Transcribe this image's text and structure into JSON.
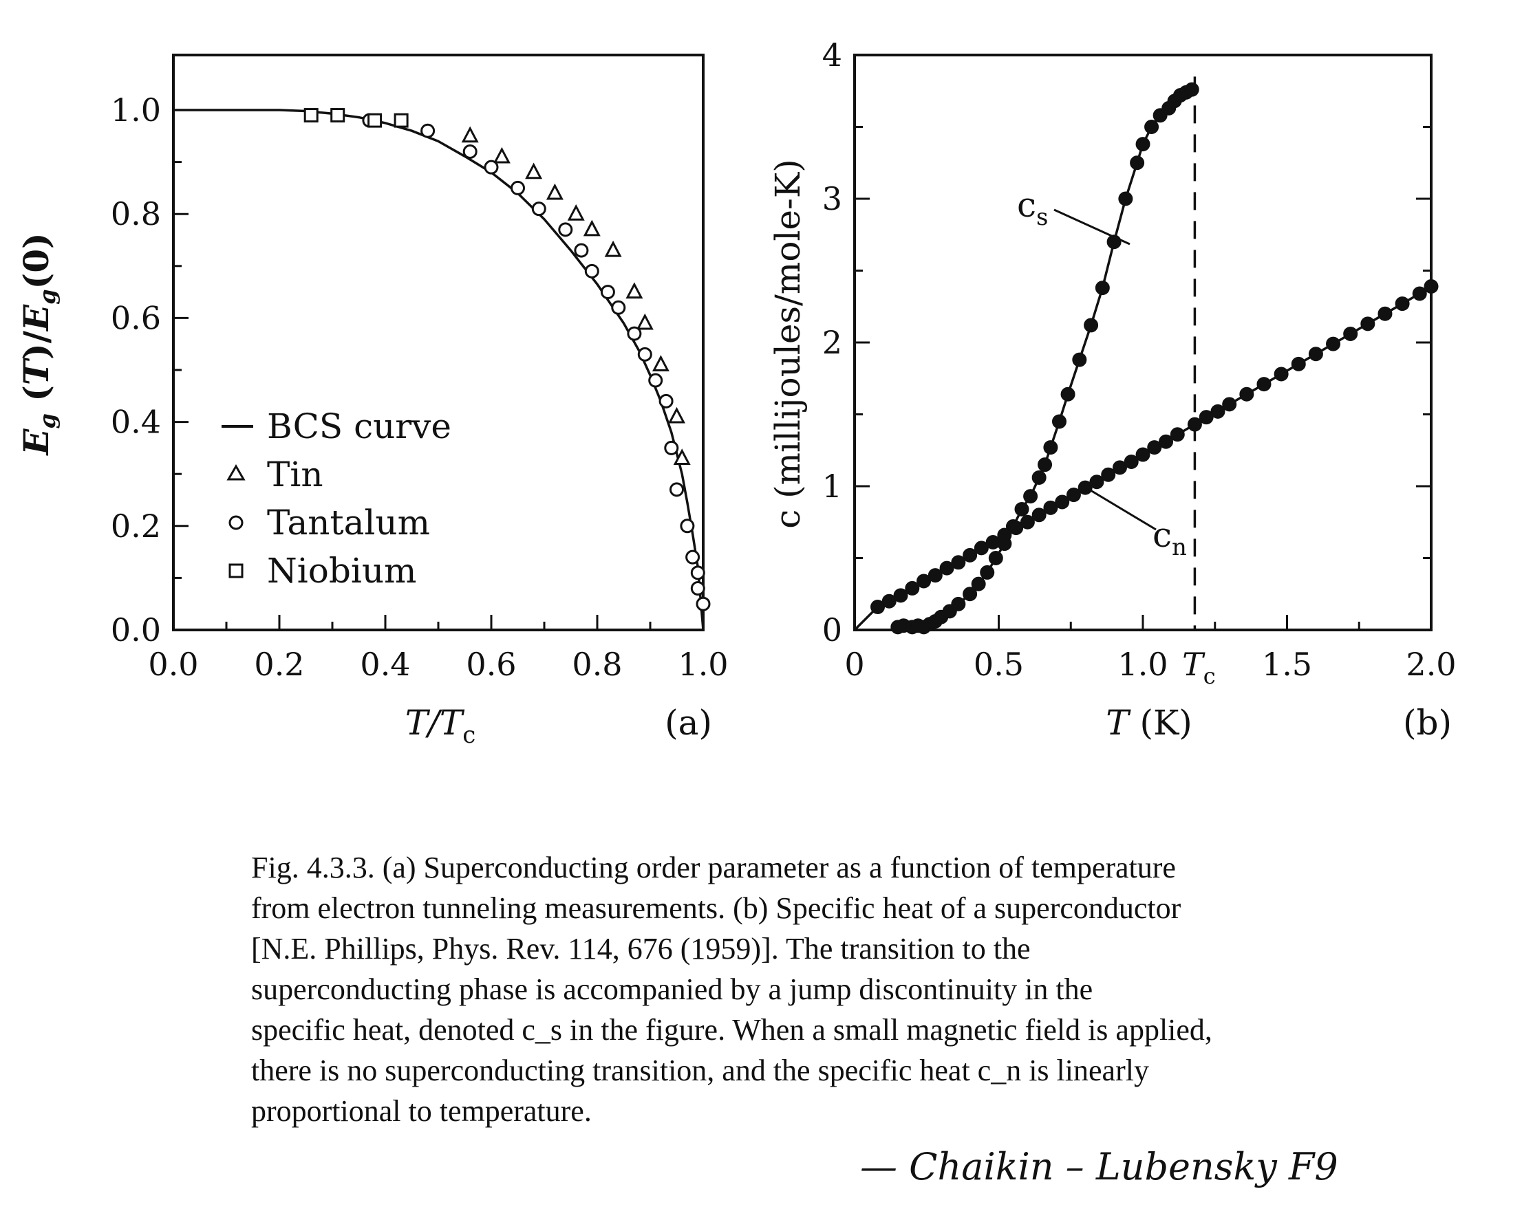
{
  "chart_data": [
    {
      "panel": "(a)",
      "type": "scatter",
      "xlabel": "T/T_c",
      "ylabel": "E_g (T)/E_g(0)",
      "xlim": [
        0.0,
        1.0
      ],
      "ylim": [
        0.0,
        1.1
      ],
      "xticks": [
        "0.0",
        "0.2",
        "0.4",
        "0.6",
        "0.8",
        "1.0"
      ],
      "yticks": [
        "0.0",
        "0.2",
        "0.4",
        "0.6",
        "0.8",
        "1.0"
      ],
      "legend_position": "lower-left",
      "series": [
        {
          "name": "BCS curve",
          "marker": "line",
          "x": [
            0.0,
            0.1,
            0.2,
            0.25,
            0.3,
            0.35,
            0.4,
            0.45,
            0.5,
            0.55,
            0.6,
            0.65,
            0.7,
            0.75,
            0.8,
            0.85,
            0.88,
            0.9,
            0.92,
            0.94,
            0.96,
            0.97,
            0.98,
            0.99,
            1.0
          ],
          "y": [
            1.0,
            1.0,
            1.0,
            0.998,
            0.993,
            0.986,
            0.975,
            0.96,
            0.94,
            0.911,
            0.88,
            0.84,
            0.79,
            0.73,
            0.665,
            0.59,
            0.535,
            0.49,
            0.44,
            0.38,
            0.3,
            0.245,
            0.185,
            0.12,
            0.0
          ]
        },
        {
          "name": "Tin",
          "marker": "triangle",
          "x": [
            0.56,
            0.62,
            0.68,
            0.72,
            0.76,
            0.79,
            0.83,
            0.87,
            0.89,
            0.92,
            0.95,
            0.96
          ],
          "y": [
            0.95,
            0.91,
            0.88,
            0.84,
            0.8,
            0.77,
            0.73,
            0.65,
            0.59,
            0.51,
            0.41,
            0.33
          ]
        },
        {
          "name": "Tantalum",
          "marker": "circle",
          "x": [
            0.37,
            0.48,
            0.56,
            0.6,
            0.65,
            0.69,
            0.74,
            0.77,
            0.79,
            0.82,
            0.84,
            0.87,
            0.89,
            0.91,
            0.93,
            0.94,
            0.95,
            0.97,
            0.98,
            0.99,
            0.99,
            1.0
          ],
          "y": [
            0.98,
            0.96,
            0.92,
            0.89,
            0.85,
            0.81,
            0.77,
            0.73,
            0.69,
            0.65,
            0.62,
            0.57,
            0.53,
            0.48,
            0.44,
            0.35,
            0.27,
            0.2,
            0.14,
            0.11,
            0.08,
            0.05
          ]
        },
        {
          "name": "Niobium",
          "marker": "square",
          "x": [
            0.26,
            0.31,
            0.38,
            0.43
          ],
          "y": [
            0.99,
            0.99,
            0.98,
            0.98
          ]
        }
      ]
    },
    {
      "panel": "(b)",
      "type": "scatter",
      "xlabel": "T (K)",
      "ylabel": "c (millijoules/mole-K)",
      "xlim": [
        0,
        2.0
      ],
      "ylim": [
        0,
        4
      ],
      "xticks": [
        "0",
        "0.5",
        "1.0",
        "1.5",
        "2.0"
      ],
      "xtick_extra": "T_c",
      "yticks": [
        "0",
        "1",
        "2",
        "3",
        "4"
      ],
      "tc": 1.18,
      "annotations": [
        "c_s",
        "c_n"
      ],
      "series": [
        {
          "name": "c_s",
          "marker": "filled-circle",
          "x": [
            0.15,
            0.17,
            0.2,
            0.22,
            0.24,
            0.26,
            0.28,
            0.3,
            0.33,
            0.36,
            0.4,
            0.43,
            0.46,
            0.49,
            0.52,
            0.55,
            0.58,
            0.61,
            0.64,
            0.66,
            0.68,
            0.71,
            0.74,
            0.78,
            0.82,
            0.86,
            0.9,
            0.94,
            0.98,
            1.0,
            1.03,
            1.06,
            1.09,
            1.11,
            1.13,
            1.15,
            1.17
          ],
          "y": [
            0.02,
            0.03,
            0.02,
            0.03,
            0.02,
            0.04,
            0.06,
            0.09,
            0.13,
            0.18,
            0.25,
            0.32,
            0.4,
            0.5,
            0.6,
            0.72,
            0.84,
            0.93,
            1.06,
            1.15,
            1.27,
            1.45,
            1.64,
            1.88,
            2.12,
            2.38,
            2.7,
            3.0,
            3.25,
            3.38,
            3.5,
            3.58,
            3.63,
            3.68,
            3.72,
            3.74,
            3.76
          ]
        },
        {
          "name": "c_n",
          "marker": "filled-circle",
          "x": [
            0.08,
            0.12,
            0.16,
            0.2,
            0.24,
            0.28,
            0.32,
            0.36,
            0.4,
            0.44,
            0.48,
            0.52,
            0.56,
            0.6,
            0.64,
            0.68,
            0.72,
            0.76,
            0.8,
            0.84,
            0.88,
            0.92,
            0.96,
            1.0,
            1.04,
            1.08,
            1.12,
            1.18,
            1.22,
            1.26,
            1.3,
            1.36,
            1.42,
            1.48,
            1.54,
            1.6,
            1.66,
            1.72,
            1.78,
            1.84,
            1.9,
            1.96,
            2.0
          ],
          "y": [
            0.16,
            0.2,
            0.24,
            0.29,
            0.34,
            0.38,
            0.43,
            0.47,
            0.52,
            0.57,
            0.61,
            0.66,
            0.71,
            0.75,
            0.8,
            0.85,
            0.89,
            0.94,
            0.99,
            1.03,
            1.08,
            1.13,
            1.17,
            1.22,
            1.27,
            1.31,
            1.36,
            1.43,
            1.48,
            1.52,
            1.57,
            1.64,
            1.71,
            1.78,
            1.85,
            1.92,
            1.99,
            2.06,
            2.13,
            2.2,
            2.27,
            2.34,
            2.39
          ]
        }
      ]
    }
  ],
  "panel_a": {
    "tag": "(a)",
    "legend": {
      "bcs": "BCS curve",
      "tin": "Tin",
      "tantalum": "Tantalum",
      "niobium": "Niobium"
    }
  },
  "panel_b": {
    "tag": "(b)",
    "cs_label": "c",
    "cs_sub": "s",
    "cn_label": "c",
    "cn_sub": "n",
    "tc_label": "T",
    "tc_sub": "c"
  },
  "caption": {
    "lines": [
      "Fig. 4.3.3. (a) Superconducting order parameter as a function of temperature",
      "from electron tunneling measurements. (b) Specific heat of a superconductor",
      "[N.E. Phillips, Phys. Rev. 114, 676 (1959)]. The transition to the",
      "superconducting phase is accompanied by a jump discontinuity in the",
      "specific heat, denoted c_s in the figure. When a small magnetic field is applied,",
      "there is no superconducting transition, and the specific heat c_n is linearly",
      "proportional to temperature."
    ]
  },
  "signature": "— Chaikin – Lubensky F9"
}
